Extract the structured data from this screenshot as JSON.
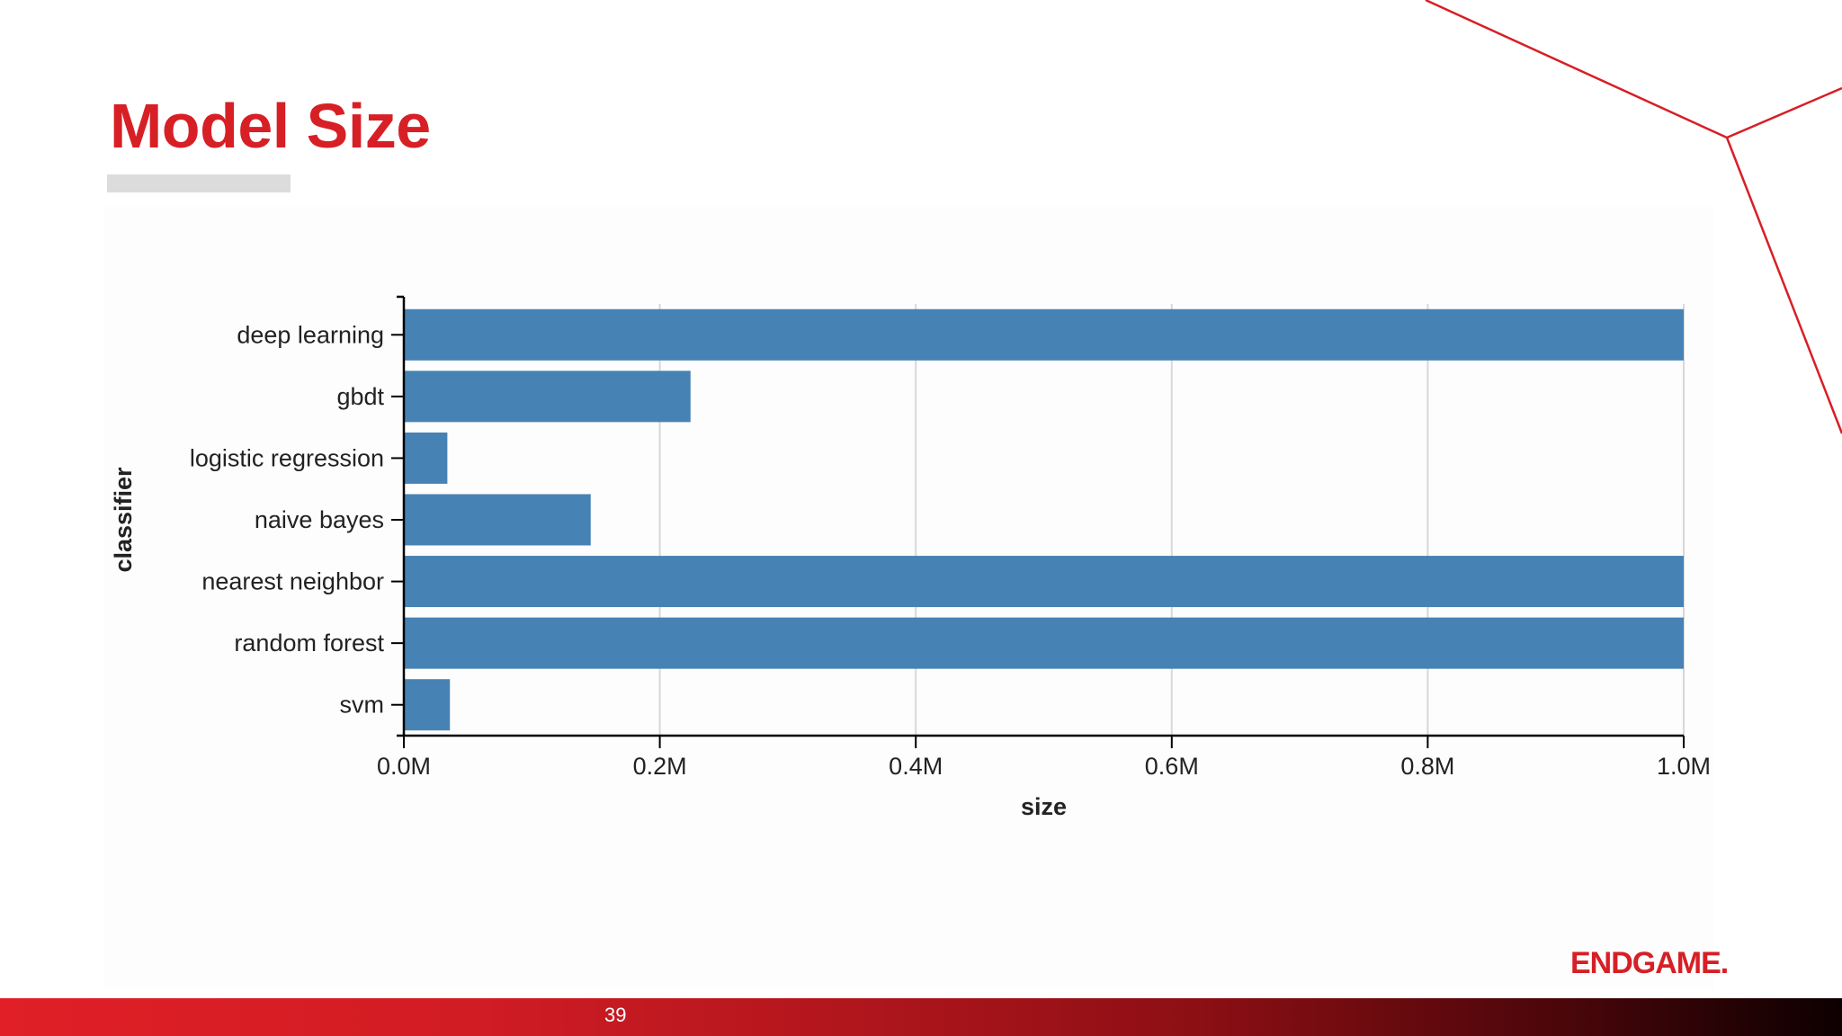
{
  "slide": {
    "title": "Model Size",
    "page_number": "39",
    "brand": "ENDGAME.",
    "accent_color": "#d71f26"
  },
  "chart_data": {
    "type": "bar",
    "orientation": "horizontal",
    "categories": [
      "deep learning",
      "gbdt",
      "logistic regression",
      "naive bayes",
      "nearest neighbor",
      "random forest",
      "svm"
    ],
    "values": [
      1000000,
      224000,
      34000,
      146000,
      1000000,
      1000000,
      36000
    ],
    "xlabel": "size",
    "ylabel": "classifier",
    "xlim": [
      0,
      1000000
    ],
    "x_ticks": [
      {
        "value": 0,
        "label": "0.0M"
      },
      {
        "value": 200000,
        "label": "0.2M"
      },
      {
        "value": 400000,
        "label": "0.4M"
      },
      {
        "value": 600000,
        "label": "0.6M"
      },
      {
        "value": 800000,
        "label": "0.8M"
      },
      {
        "value": 1000000,
        "label": "1.0M"
      }
    ],
    "grid": "vertical",
    "bar_color": "#4682b4"
  }
}
